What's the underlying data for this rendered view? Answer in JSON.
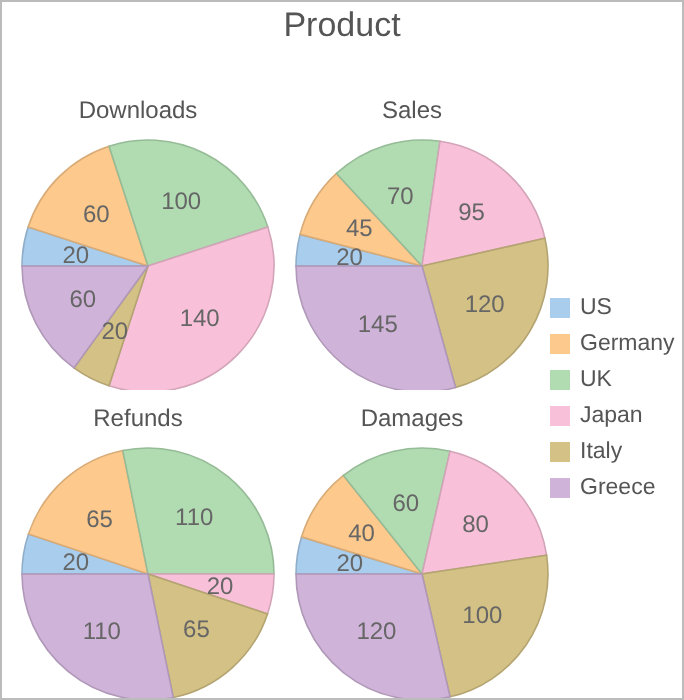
{
  "chart_data": [
    {
      "type": "pie",
      "title": "Downloads",
      "annotations": [
        "Product"
      ],
      "legend": "right",
      "data_labels": true,
      "categories": [
        "US",
        "Germany",
        "UK",
        "Japan",
        "Italy",
        "Greece"
      ],
      "colors": [
        "#a9cdec",
        "#fec98c",
        "#b1dcb2",
        "#f8c1d9",
        "#d4c185",
        "#cfb3d8"
      ],
      "values": [
        20,
        60,
        100,
        140,
        20,
        60
      ]
    },
    {
      "type": "pie",
      "title": "Sales",
      "data_labels": true,
      "categories": [
        null,
        null,
        null,
        null,
        null,
        null
      ],
      "colors": [
        "#a9cdec",
        "#fec98c",
        "#b1dcb2",
        "#f8c1d9",
        "#d4c185",
        "#cfb3d8"
      ],
      "values": [
        20,
        45,
        70,
        95,
        120,
        145
      ]
    },
    {
      "type": "pie",
      "title": "Refunds",
      "data_labels": true,
      "categories": [
        null,
        null,
        null,
        null,
        null,
        null
      ],
      "colors": [
        "#a9cdec",
        "#fec98c",
        "#b1dcb2",
        "#f8c1d9",
        "#d4c185",
        "#cfb3d8"
      ],
      "values": [
        20,
        65,
        110,
        20,
        65,
        110
      ]
    },
    {
      "type": "pie",
      "title": "Damages",
      "data_labels": true,
      "categories": [
        null,
        null,
        null,
        null,
        null,
        null
      ],
      "colors": [
        "#a9cdec",
        "#fec98c",
        "#b1dcb2",
        "#f8c1d9",
        "#d4c185",
        "#cfb3d8"
      ],
      "values": [
        20,
        40,
        60,
        80,
        100,
        120
      ]
    }
  ]
}
